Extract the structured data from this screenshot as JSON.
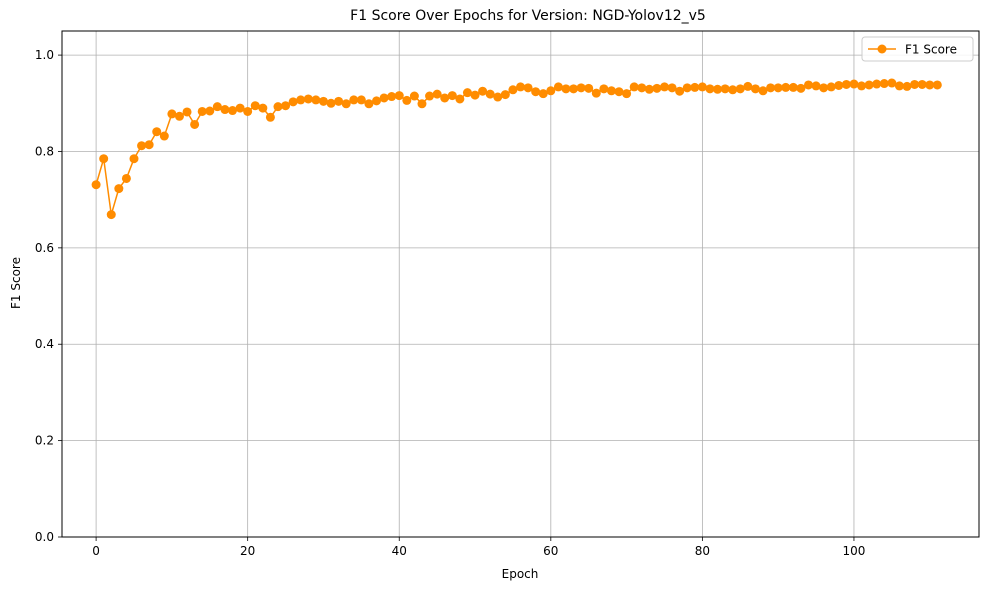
{
  "chart_data": {
    "type": "line",
    "title": "F1 Score Over Epochs for Version: NGD-Yolov12_v5",
    "xlabel": "Epoch",
    "ylabel": "F1 Score",
    "xlim": [
      -4.5,
      116.5
    ],
    "ylim": [
      0,
      1.05
    ],
    "xticks": [
      0,
      20,
      40,
      60,
      80,
      100
    ],
    "yticks": [
      0.0,
      0.2,
      0.4,
      0.6,
      0.8,
      1.0
    ],
    "xtick_labels": [
      "0",
      "20",
      "40",
      "60",
      "80",
      "100"
    ],
    "ytick_labels": [
      "0.0",
      "0.2",
      "0.4",
      "0.6",
      "0.8",
      "1.0"
    ],
    "grid": true,
    "legend_position": "top-right",
    "series": [
      {
        "name": "F1 Score",
        "color": "#ff8c00",
        "marker": "circle",
        "x": [
          0,
          1,
          2,
          3,
          4,
          5,
          6,
          7,
          8,
          9,
          10,
          11,
          12,
          13,
          14,
          15,
          16,
          17,
          18,
          19,
          20,
          21,
          22,
          23,
          24,
          25,
          26,
          27,
          28,
          29,
          30,
          31,
          32,
          33,
          34,
          35,
          36,
          37,
          38,
          39,
          40,
          41,
          42,
          43,
          44,
          45,
          46,
          47,
          48,
          49,
          50,
          51,
          52,
          53,
          54,
          55,
          56,
          57,
          58,
          59,
          60,
          61,
          62,
          63,
          64,
          65,
          66,
          67,
          68,
          69,
          70,
          71,
          72,
          73,
          74,
          75,
          76,
          77,
          78,
          79,
          80,
          81,
          82,
          83,
          84,
          85,
          86,
          87,
          88,
          89,
          90,
          91,
          92,
          93,
          94,
          95,
          96,
          97,
          98,
          99,
          100,
          101,
          102,
          103,
          104,
          105,
          106,
          107,
          108,
          109,
          110,
          111
        ],
        "values": [
          0.731,
          0.785,
          0.669,
          0.723,
          0.744,
          0.785,
          0.812,
          0.814,
          0.841,
          0.832,
          0.878,
          0.873,
          0.882,
          0.856,
          0.883,
          0.884,
          0.893,
          0.887,
          0.885,
          0.89,
          0.883,
          0.895,
          0.89,
          0.871,
          0.893,
          0.895,
          0.903,
          0.907,
          0.909,
          0.907,
          0.904,
          0.9,
          0.904,
          0.899,
          0.907,
          0.907,
          0.899,
          0.905,
          0.911,
          0.914,
          0.916,
          0.906,
          0.915,
          0.899,
          0.915,
          0.919,
          0.911,
          0.916,
          0.909,
          0.922,
          0.917,
          0.925,
          0.919,
          0.913,
          0.918,
          0.928,
          0.934,
          0.932,
          0.924,
          0.92,
          0.926,
          0.934,
          0.93,
          0.93,
          0.932,
          0.931,
          0.921,
          0.93,
          0.926,
          0.924,
          0.92,
          0.934,
          0.932,
          0.929,
          0.931,
          0.934,
          0.932,
          0.925,
          0.932,
          0.933,
          0.934,
          0.93,
          0.929,
          0.93,
          0.928,
          0.93,
          0.935,
          0.93,
          0.926,
          0.932,
          0.932,
          0.933,
          0.933,
          0.931,
          0.938,
          0.936,
          0.932,
          0.934,
          0.937,
          0.939,
          0.94,
          0.936,
          0.938,
          0.94,
          0.941,
          0.942,
          0.936,
          0.935,
          0.939,
          0.939,
          0.938,
          0.938
        ]
      }
    ]
  }
}
